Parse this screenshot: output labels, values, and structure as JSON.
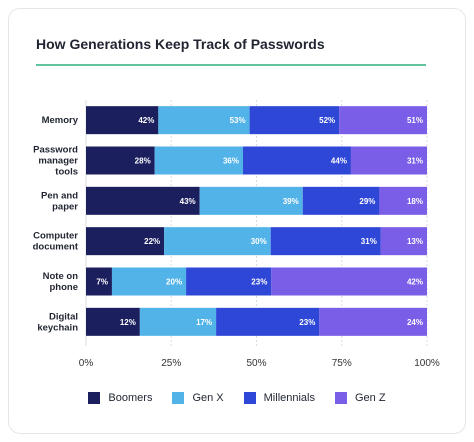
{
  "chart_data": {
    "type": "bar",
    "orientation": "horizontal",
    "stacked": "percent",
    "title": "How Generations Keep Track of Passwords",
    "categories": [
      "Memory",
      "Password manager tools",
      "Pen and paper",
      "Computer document",
      "Note on phone",
      "Digital keychain"
    ],
    "category_lines": [
      [
        "Memory"
      ],
      [
        "Password",
        "manager",
        "tools"
      ],
      [
        "Pen and",
        "paper"
      ],
      [
        "Computer",
        "document"
      ],
      [
        "Note on",
        "phone"
      ],
      [
        "Digital",
        "keychain"
      ]
    ],
    "series": [
      {
        "name": "Boomers",
        "color": "#1c1f5e",
        "values": [
          42,
          28,
          43,
          22,
          7,
          12
        ]
      },
      {
        "name": "Gen X",
        "color": "#52b3e8",
        "values": [
          53,
          36,
          39,
          30,
          20,
          17
        ]
      },
      {
        "name": "Millennials",
        "color": "#2e47d6",
        "values": [
          52,
          44,
          29,
          31,
          23,
          23
        ]
      },
      {
        "name": "Gen Z",
        "color": "#7a5ee8",
        "values": [
          51,
          31,
          18,
          13,
          42,
          24
        ]
      }
    ],
    "xticks": [
      "0%",
      "25%",
      "50%",
      "75%",
      "100%"
    ],
    "xlim": [
      0,
      100
    ],
    "grid": true,
    "legend_position": "bottom"
  }
}
